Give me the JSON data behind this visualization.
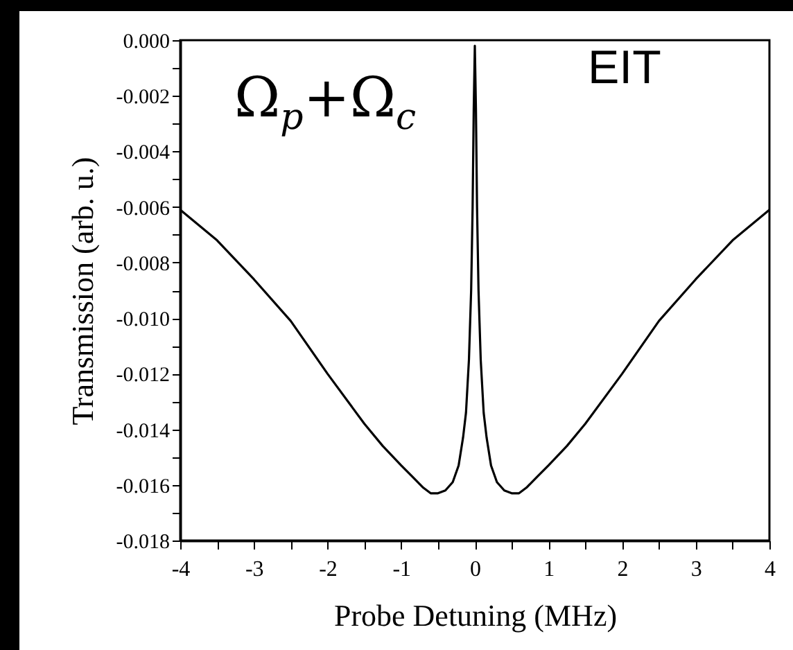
{
  "chart_data": {
    "type": "line",
    "xlabel": "Probe Detuning (MHz)",
    "ylabel": "Transmission (arb. u.)",
    "annotations": [
      "Ω$_{p}$+Ω$_{c}$",
      "EIT"
    ],
    "series": [
      {
        "color": "#000000",
        "x": [
          -4,
          -3.5,
          -3,
          -2.5,
          -2,
          -1.5,
          -1.25,
          -1,
          -0.85,
          -0.7,
          -0.6,
          -0.5,
          -0.4,
          -0.3,
          -0.22,
          -0.16,
          -0.12,
          -0.08,
          -0.05,
          -0.03,
          -0.015,
          0,
          0.015,
          0.03,
          0.05,
          0.08,
          0.12,
          0.16,
          0.22,
          0.3,
          0.4,
          0.5,
          0.6,
          0.7,
          0.85,
          1,
          1.25,
          1.5,
          2,
          2.5,
          3,
          3.5,
          4
        ],
        "values": [
          -0.0061,
          -0.0072,
          -0.0086,
          -0.0101,
          -0.012,
          -0.0138,
          -0.0146,
          -0.0153,
          -0.0157,
          -0.0161,
          -0.0163,
          -0.0163,
          -0.0162,
          -0.0159,
          -0.0153,
          -0.0143,
          -0.0134,
          -0.0115,
          -0.009,
          -0.006,
          -0.0025,
          -0.0002,
          -0.0025,
          -0.006,
          -0.009,
          -0.0115,
          -0.0134,
          -0.0143,
          -0.0153,
          -0.0159,
          -0.0162,
          -0.0163,
          -0.0163,
          -0.0161,
          -0.0157,
          -0.0153,
          -0.0146,
          -0.0138,
          -0.012,
          -0.0101,
          -0.0086,
          -0.0072,
          -0.0061
        ]
      }
    ],
    "xlim": [
      -4,
      4
    ],
    "xticks": [
      -4,
      {
        "value": -3.5,
        "label": null
      },
      -3,
      {
        "value": -2.5,
        "label": null
      },
      -2,
      {
        "value": -1.5,
        "label": null
      },
      -1,
      {
        "value": -0.5,
        "label": null
      },
      0,
      {
        "value": 0.5,
        "label": null
      },
      1,
      {
        "value": 1.5,
        "label": null
      },
      2,
      {
        "value": 2.5,
        "label": null
      },
      3,
      {
        "value": 3.5,
        "label": null
      },
      4
    ],
    "ylim": [
      -0.018,
      0
    ],
    "yticks": [
      {
        "value": -0.018,
        "label": "-0.018"
      },
      {
        "value": -0.017,
        "label": null
      },
      {
        "value": -0.016,
        "label": "-0.016"
      },
      {
        "value": -0.015,
        "label": null
      },
      {
        "value": -0.014,
        "label": "-0.014"
      },
      {
        "value": -0.013,
        "label": null
      },
      {
        "value": -0.012,
        "label": "-0.012"
      },
      {
        "value": -0.011,
        "label": null
      },
      {
        "value": -0.01,
        "label": "-0.010"
      },
      {
        "value": -0.009,
        "label": null
      },
      {
        "value": -0.008,
        "label": "-0.008"
      },
      {
        "value": -0.007,
        "label": null
      },
      {
        "value": -0.006,
        "label": "-0.006"
      },
      {
        "value": -0.005,
        "label": null
      },
      {
        "value": -0.004,
        "label": "-0.004"
      },
      {
        "value": -0.003,
        "label": null
      },
      {
        "value": -0.002,
        "label": "-0.002"
      },
      {
        "value": -0.001,
        "label": null
      },
      {
        "value": 0,
        "label": "0.000"
      }
    ],
    "grid": false,
    "line_style": "solid",
    "marker": "none"
  }
}
